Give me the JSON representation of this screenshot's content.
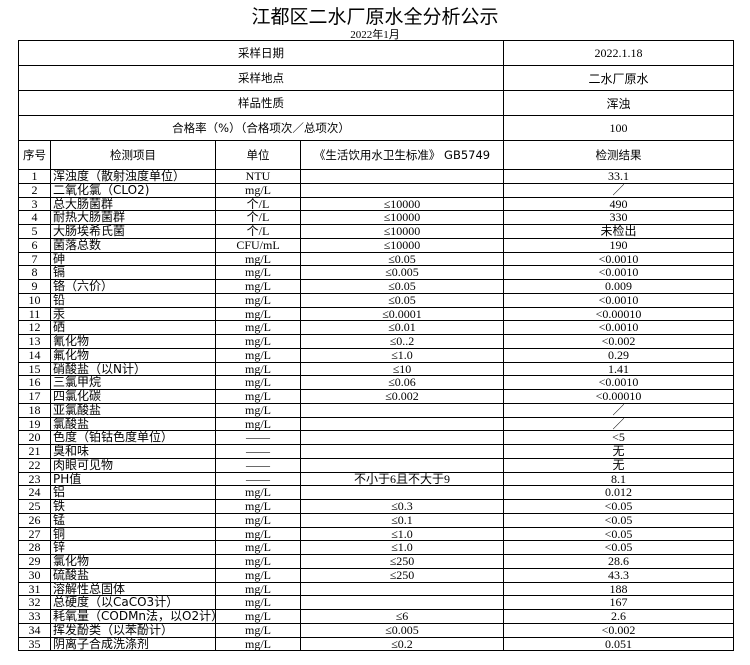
{
  "title": "江都区二水厂原水全分析公示",
  "subtitle": "2022年1月",
  "meta": [
    {
      "label": "采样日期",
      "value": "2022.1.18"
    },
    {
      "label": "采样地点",
      "value": "二水厂原水"
    },
    {
      "label": "样品性质",
      "value": "浑浊"
    },
    {
      "label": "合格率（%）（合格项次／总项次）",
      "value": "100"
    }
  ],
  "columns": [
    "序号",
    "检测项目",
    "单位",
    "《生活饮用水卫生标准》 GB5749",
    "检测结果"
  ],
  "rows": [
    [
      "1",
      "浑浊度（散射浊度单位）",
      "NTU",
      "",
      "33.1"
    ],
    [
      "2",
      "二氧化氯（CLO2)",
      "mg/L",
      "",
      "／"
    ],
    [
      "3",
      "总大肠菌群",
      "个/L",
      "≤10000",
      "490"
    ],
    [
      "4",
      "耐热大肠菌群",
      "个/L",
      "≤10000",
      "330"
    ],
    [
      "5",
      "大肠埃希氏菌",
      "个/L",
      "≤10000",
      "未检出"
    ],
    [
      "6",
      "菌落总数",
      "CFU/mL",
      "≤10000",
      "190"
    ],
    [
      "7",
      "砷",
      "mg/L",
      "≤0.05",
      "<0.0010"
    ],
    [
      "8",
      "镉",
      "mg/L",
      "≤0.005",
      "<0.0010"
    ],
    [
      "9",
      "铬（六价）",
      "mg/L",
      "≤0.05",
      "0.009"
    ],
    [
      "10",
      "铅",
      "mg/L",
      "≤0.05",
      "<0.0010"
    ],
    [
      "11",
      "汞",
      "mg/L",
      "≤0.0001",
      "<0.00010"
    ],
    [
      "12",
      "硒",
      "mg/L",
      "≤0.01",
      "<0.0010"
    ],
    [
      "13",
      "氰化物",
      "mg/L",
      "≤0..2",
      "<0.002"
    ],
    [
      "14",
      "氟化物",
      "mg/L",
      "≤1.0",
      "0.29"
    ],
    [
      "15",
      "硝酸盐（以N计）",
      "mg/L",
      "≤10",
      "1.41"
    ],
    [
      "16",
      "三氯甲烷",
      "mg/L",
      "≤0.06",
      "<0.0010"
    ],
    [
      "17",
      "四氯化碳",
      "mg/L",
      "≤0.002",
      "<0.00010"
    ],
    [
      "18",
      "亚氯酸盐",
      "mg/L",
      "",
      "／"
    ],
    [
      "19",
      "氯酸盐",
      "mg/L",
      "",
      "／"
    ],
    [
      "20",
      "色度（铂钴色度单位）",
      "——",
      "",
      "<5"
    ],
    [
      "21",
      "臭和味",
      "——",
      "",
      "无"
    ],
    [
      "22",
      "肉眼可见物",
      "——",
      "",
      "无"
    ],
    [
      "23",
      "PH值",
      "——",
      "不小于6且不大于9",
      "8.1"
    ],
    [
      "24",
      "铝",
      "mg/L",
      "",
      "0.012"
    ],
    [
      "25",
      "铁",
      "mg/L",
      "≤0.3",
      "<0.05"
    ],
    [
      "26",
      "锰",
      "mg/L",
      "≤0.1",
      "<0.05"
    ],
    [
      "27",
      "铜",
      "mg/L",
      "≤1.0",
      "<0.05"
    ],
    [
      "28",
      "锌",
      "mg/L",
      "≤1.0",
      "<0.05"
    ],
    [
      "29",
      "氯化物",
      "mg/L",
      "≤250",
      "28.6"
    ],
    [
      "30",
      "硫酸盐",
      "mg/L",
      "≤250",
      "43.3"
    ],
    [
      "31",
      "溶解性总固体",
      "mg/L",
      "",
      "188"
    ],
    [
      "32",
      "总硬度（以CaCO3计）",
      "mg/L",
      "",
      "167"
    ],
    [
      "33",
      "耗氧量（CODMn法，以O2计）",
      "mg/L",
      "≤6",
      "2.6"
    ],
    [
      "34",
      "挥发酚类（以苯酚计）",
      "mg/L",
      "≤0.005",
      "<0.002"
    ],
    [
      "35",
      "阴离子合成洗涤剂",
      "mg/L",
      "≤0.2",
      "0.051"
    ]
  ]
}
